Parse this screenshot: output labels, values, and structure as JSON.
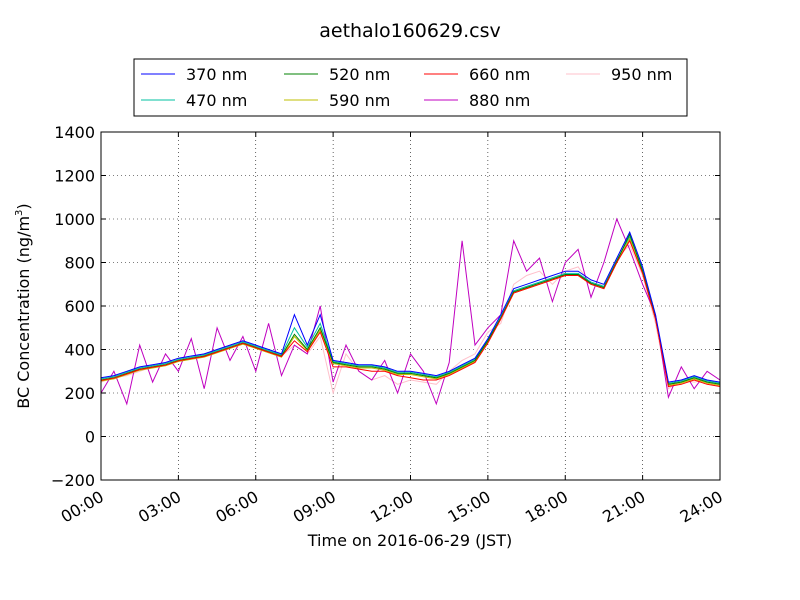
{
  "chart_data": {
    "type": "line",
    "title": "aethalo160629.csv",
    "xlabel": "Time on 2016-06-29 (JST)",
    "ylabel_main": "BC Concentration (ng/m",
    "ylabel_sup": "3",
    "ylabel_close": ")",
    "xlim": [
      "2016-06-29 00:00",
      "2016-06-30 00:00"
    ],
    "ylim": [
      -200,
      1400
    ],
    "x_tick_labels": [
      "00:00",
      "03:00",
      "06:00",
      "09:00",
      "12:00",
      "15:00",
      "18:00",
      "21:00",
      "24:00"
    ],
    "x_tick_hours": [
      0,
      3,
      6,
      9,
      12,
      15,
      18,
      21,
      24
    ],
    "y_ticks": [
      -200,
      0,
      200,
      400,
      600,
      800,
      1000,
      1200,
      1400
    ],
    "y_tick_labels": [
      "−200",
      "0",
      "200",
      "400",
      "600",
      "800",
      "1000",
      "1200",
      "1400"
    ],
    "grid": true,
    "legend_position": "top-center, above plot",
    "x_hours": [
      0,
      0.5,
      1,
      1.5,
      2,
      2.5,
      3,
      3.5,
      4,
      4.5,
      5,
      5.5,
      6,
      6.5,
      7,
      7.5,
      8,
      8.5,
      9,
      9.5,
      10,
      10.5,
      11,
      11.5,
      12,
      12.5,
      13,
      13.5,
      14,
      14.5,
      15,
      15.5,
      16,
      16.5,
      17,
      17.5,
      18,
      18.5,
      19,
      19.5,
      20,
      20.5,
      21,
      21.5,
      22,
      22.5,
      23,
      23.5,
      24
    ],
    "series": [
      {
        "name": "370 nm",
        "color": "#0000ff",
        "values": [
          270,
          280,
          300,
          320,
          330,
          340,
          360,
          370,
          380,
          400,
          420,
          440,
          420,
          400,
          380,
          560,
          420,
          560,
          350,
          340,
          330,
          330,
          320,
          300,
          300,
          290,
          280,
          300,
          330,
          360,
          450,
          560,
          680,
          700,
          720,
          740,
          760,
          760,
          720,
          700,
          820,
          940,
          780,
          560,
          250,
          260,
          280,
          260,
          250
        ]
      },
      {
        "name": "470 nm",
        "color": "#00c0a0",
        "values": [
          265,
          275,
          295,
          315,
          325,
          335,
          355,
          365,
          375,
          395,
          415,
          435,
          415,
          395,
          375,
          500,
          410,
          520,
          345,
          335,
          325,
          325,
          315,
          295,
          295,
          285,
          275,
          295,
          325,
          355,
          445,
          550,
          670,
          690,
          710,
          730,
          750,
          750,
          710,
          690,
          810,
          920,
          770,
          550,
          245,
          255,
          275,
          255,
          245
        ]
      },
      {
        "name": "520 nm",
        "color": "#008000",
        "values": [
          260,
          270,
          290,
          310,
          320,
          330,
          350,
          360,
          370,
          390,
          410,
          430,
          410,
          390,
          370,
          470,
          400,
          500,
          340,
          330,
          320,
          320,
          310,
          290,
          290,
          280,
          270,
          290,
          320,
          350,
          440,
          545,
          665,
          685,
          705,
          725,
          745,
          745,
          705,
          685,
          805,
          930,
          760,
          545,
          240,
          250,
          270,
          250,
          240
        ]
      },
      {
        "name": "590 nm",
        "color": "#bfbf00",
        "values": [
          255,
          265,
          285,
          305,
          315,
          325,
          345,
          355,
          365,
          385,
          405,
          425,
          405,
          385,
          365,
          460,
          395,
          490,
          335,
          325,
          315,
          315,
          305,
          285,
          285,
          275,
          265,
          285,
          315,
          345,
          435,
          540,
          660,
          680,
          700,
          720,
          740,
          740,
          700,
          680,
          800,
          910,
          755,
          540,
          235,
          245,
          265,
          245,
          235
        ]
      },
      {
        "name": "660 nm",
        "color": "#ff0000",
        "values": [
          258,
          268,
          288,
          308,
          318,
          328,
          348,
          358,
          368,
          388,
          408,
          428,
          408,
          388,
          368,
          440,
          390,
          480,
          320,
          320,
          310,
          300,
          300,
          280,
          270,
          260,
          260,
          280,
          310,
          340,
          430,
          540,
          660,
          680,
          700,
          720,
          740,
          740,
          700,
          680,
          800,
          900,
          750,
          540,
          230,
          240,
          260,
          240,
          230
        ]
      },
      {
        "name": "880 nm",
        "color": "#c000c0",
        "values": [
          200,
          300,
          150,
          420,
          250,
          380,
          300,
          450,
          220,
          500,
          350,
          460,
          300,
          520,
          280,
          420,
          380,
          600,
          250,
          420,
          300,
          260,
          350,
          200,
          380,
          300,
          150,
          340,
          900,
          420,
          500,
          560,
          900,
          760,
          820,
          620,
          800,
          860,
          640,
          800,
          1000,
          860,
          700,
          560,
          180,
          320,
          220,
          300,
          260
        ]
      },
      {
        "name": "950 nm",
        "color": "#ffc0cb",
        "values": [
          250,
          270,
          280,
          300,
          320,
          340,
          360,
          360,
          380,
          400,
          420,
          440,
          410,
          390,
          370,
          420,
          380,
          460,
          200,
          380,
          300,
          260,
          280,
          240,
          260,
          250,
          240,
          300,
          350,
          380,
          480,
          520,
          700,
          740,
          760,
          700,
          760,
          780,
          700,
          700,
          820,
          880,
          740,
          520,
          220,
          260,
          250,
          260,
          240
        ]
      }
    ]
  }
}
